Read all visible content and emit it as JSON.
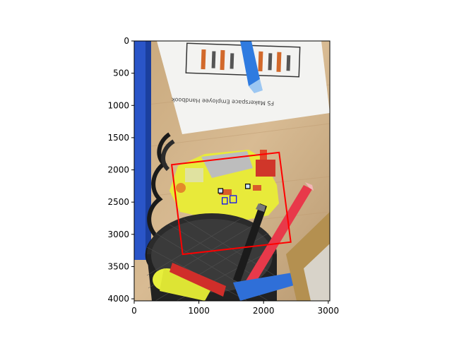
{
  "chart_data": {
    "type": "image_with_annotations",
    "title": "",
    "xlabel": "",
    "ylabel": "",
    "xlim": [
      0,
      3024
    ],
    "ylim": [
      4032,
      0
    ],
    "y_axis_inverted": true,
    "x_ticks": [
      0,
      1000,
      2000,
      3000
    ],
    "y_ticks": [
      0,
      500,
      1000,
      1500,
      2000,
      2500,
      3000,
      3500,
      4000
    ],
    "grid": false,
    "legend": "none",
    "image_description": "photo of a yellow toy truck in a black mesh pen cup beside a handbook on a wooden desk",
    "image_text": "FS Makerspace Employee Handbook",
    "annotations": [
      {
        "name": "large-red-quadrilateral",
        "kind": "polygon",
        "color": "#ff0000",
        "points": [
          [
            580,
            1920
          ],
          [
            2240,
            1730
          ],
          [
            2420,
            3120
          ],
          [
            750,
            3310
          ]
        ]
      },
      {
        "name": "small-box-1",
        "kind": "box",
        "color": "#000000",
        "fill": "#cfe7ff",
        "points": [
          [
            1300,
            2290
          ],
          [
            1370,
            2290
          ],
          [
            1370,
            2360
          ],
          [
            1300,
            2360
          ]
        ]
      },
      {
        "name": "small-box-2",
        "kind": "box",
        "color": "#000000",
        "fill": "#cfe7ff",
        "points": [
          [
            1720,
            2220
          ],
          [
            1790,
            2220
          ],
          [
            1790,
            2290
          ],
          [
            1720,
            2290
          ]
        ]
      },
      {
        "name": "blue-cluster-1",
        "kind": "box",
        "color": "#0000ff",
        "points": [
          [
            1360,
            2430
          ],
          [
            1440,
            2430
          ],
          [
            1440,
            2530
          ],
          [
            1360,
            2530
          ]
        ]
      },
      {
        "name": "blue-cluster-2",
        "kind": "box",
        "color": "#0000ff",
        "points": [
          [
            1480,
            2400
          ],
          [
            1580,
            2400
          ],
          [
            1580,
            2510
          ],
          [
            1480,
            2510
          ]
        ]
      }
    ]
  },
  "colors": {
    "axis": "#000000",
    "annotation_red": "#ff0000",
    "annotation_blue": "#0000ff"
  }
}
